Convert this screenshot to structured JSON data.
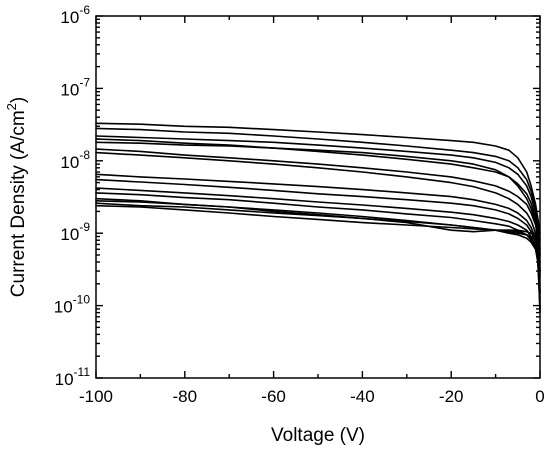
{
  "chart_data": {
    "type": "line",
    "xlabel": "Voltage (V)",
    "ylabel": "Current Density (A/cm²)",
    "ylabel_parts": {
      "main": "Current Density (A/cm",
      "sup": "2",
      "tail": ")"
    },
    "xlim": [
      -100,
      0
    ],
    "ylim": [
      1e-11,
      1e-06
    ],
    "yscale": "log",
    "grid": false,
    "legend": "none",
    "line_color": "#000000",
    "x_ticks": [
      -100,
      -80,
      -60,
      -40,
      -20,
      0
    ],
    "x_tick_labels": [
      "-100",
      "-80",
      "-60",
      "-40",
      "-20",
      "0"
    ],
    "y_ticks": [
      {
        "value": 1e-06,
        "base": "10",
        "exp": "-6"
      },
      {
        "value": 1e-07,
        "base": "10",
        "exp": "-7"
      },
      {
        "value": 1e-08,
        "base": "10",
        "exp": "-8"
      },
      {
        "value": 1e-09,
        "base": "10",
        "exp": "-9"
      },
      {
        "value": 1e-10,
        "base": "10",
        "exp": "-10"
      },
      {
        "value": 1e-11,
        "base": "10",
        "exp": "-11"
      }
    ],
    "x": [
      -100,
      -90,
      -80,
      -70,
      -60,
      -50,
      -40,
      -30,
      -20,
      -15,
      -10,
      -7,
      -5,
      -3,
      -2,
      -1,
      -0.5,
      0
    ],
    "series": [
      {
        "values": [
          3.3e-08,
          3.2e-08,
          3e-08,
          2.9e-08,
          2.7e-08,
          2.5e-08,
          2.3e-08,
          2.1e-08,
          1.9e-08,
          1.8e-08,
          1.6e-08,
          1.4e-08,
          1.1e-08,
          7e-09,
          4.5e-09,
          2.5e-09,
          1.6e-09,
          1e-09
        ]
      },
      {
        "values": [
          2.8e-08,
          2.7e-08,
          2.5e-08,
          2.4e-08,
          2.2e-08,
          2e-08,
          1.8e-08,
          1.6e-08,
          1.4e-08,
          1.3e-08,
          1.15e-08,
          1e-08,
          8e-09,
          5.5e-09,
          3.8e-09,
          2.2e-09,
          1.5e-09,
          8e-10
        ]
      },
      {
        "values": [
          2.2e-08,
          2.1e-08,
          2e-08,
          1.9e-08,
          1.8e-08,
          1.65e-08,
          1.5e-08,
          1.35e-08,
          1.2e-08,
          1.1e-08,
          9.5e-09,
          8e-09,
          6.5e-09,
          4.5e-09,
          3.2e-09,
          1.9e-09,
          1.3e-09,
          6e-10
        ]
      },
      {
        "values": [
          2e-08,
          1.9e-08,
          1.75e-08,
          1.65e-08,
          1.5e-08,
          1.35e-08,
          1.2e-08,
          1.05e-08,
          9e-09,
          8e-09,
          7e-09,
          6e-09,
          4.8e-09,
          3.5e-09,
          2.6e-09,
          1.6e-09,
          1.1e-09,
          5e-10
        ]
      },
      {
        "values": [
          1.8e-08,
          1.75e-08,
          1.65e-08,
          1.6e-08,
          1.5e-08,
          1.4e-08,
          1.3e-08,
          1.15e-08,
          1e-08,
          9e-09,
          7.5e-09,
          6e-09,
          4.5e-09,
          3e-09,
          2.2e-09,
          1.4e-09,
          9e-10,
          3e-10
        ]
      },
      {
        "values": [
          1.45e-08,
          1.35e-08,
          1.2e-08,
          1.1e-08,
          1e-08,
          9e-09,
          8e-09,
          7e-09,
          6e-09,
          5.3e-09,
          4.5e-09,
          3.8e-09,
          3.2e-09,
          2.5e-09,
          1.9e-09,
          1.3e-09,
          8.5e-10,
          2.5e-10
        ]
      },
      {
        "values": [
          1.3e-08,
          1.2e-08,
          1.1e-08,
          1e-08,
          9e-09,
          8e-09,
          7e-09,
          6e-09,
          5e-09,
          4.4e-09,
          3.6e-09,
          3e-09,
          2.5e-09,
          1.9e-09,
          1.5e-09,
          1e-09,
          7e-10,
          1.5e-10
        ]
      },
      {
        "values": [
          6.5e-09,
          6e-09,
          5.6e-09,
          5.2e-09,
          4.8e-09,
          4.4e-09,
          4e-09,
          3.6e-09,
          3.2e-09,
          2.9e-09,
          2.5e-09,
          2.2e-09,
          1.9e-09,
          1.5e-09,
          1.2e-09,
          8.5e-10,
          5.5e-10,
          1e-10
        ]
      },
      {
        "values": [
          5.5e-09,
          5.1e-09,
          4.7e-09,
          4.3e-09,
          3.9e-09,
          3.5e-09,
          3.2e-09,
          2.9e-09,
          2.6e-09,
          2.4e-09,
          2.1e-09,
          1.85e-09,
          1.6e-09,
          1.3e-09,
          1.05e-09,
          7.5e-10,
          5e-10,
          8e-11
        ]
      },
      {
        "values": [
          4.2e-09,
          3.9e-09,
          3.6e-09,
          3.3e-09,
          3e-09,
          2.7e-09,
          2.45e-09,
          2.2e-09,
          1.95e-09,
          1.8e-09,
          1.6e-09,
          1.45e-09,
          1.3e-09,
          1.1e-09,
          9e-10,
          6.5e-10,
          4.5e-10,
          9e-11
        ]
      },
      {
        "values": [
          3.6e-09,
          3.4e-09,
          3.1e-09,
          2.9e-09,
          2.6e-09,
          2.3e-09,
          2.1e-09,
          1.85e-09,
          1.65e-09,
          1.5e-09,
          1.35e-09,
          1.25e-09,
          1.1e-09,
          9.5e-10,
          8e-10,
          6e-10,
          4e-10,
          1.2e-10
        ]
      },
      {
        "values": [
          3e-09,
          2.8e-09,
          2.5e-09,
          2.3e-09,
          2.1e-09,
          1.9e-09,
          1.7e-09,
          1.5e-09,
          1.3e-09,
          1.2e-09,
          1.1e-09,
          1e-09,
          9.5e-10,
          8.5e-10,
          7.5e-10,
          6e-10,
          4.5e-10,
          1.5e-10
        ]
      },
      {
        "values": [
          2.8e-09,
          2.7e-09,
          2.5e-09,
          2.3e-09,
          2e-09,
          1.8e-09,
          1.6e-09,
          1.4e-09,
          1.1e-09,
          1.05e-09,
          1.1e-09,
          1.1e-09,
          1.05e-09,
          9.5e-10,
          8.5e-10,
          7e-10,
          5.5e-10,
          3e-10
        ]
      },
      {
        "values": [
          2.6e-09,
          2.4e-09,
          2.3e-09,
          2.1e-09,
          1.9e-09,
          1.75e-09,
          1.6e-09,
          1.45e-09,
          1.3e-09,
          1.2e-09,
          1.1e-09,
          1.05e-09,
          1e-09,
          9.5e-10,
          9e-10,
          8e-10,
          6.5e-10,
          4e-10
        ]
      },
      {
        "values": [
          2.4e-09,
          2.3e-09,
          2.1e-09,
          1.9e-09,
          1.7e-09,
          1.55e-09,
          1.4e-09,
          1.3e-09,
          1.2e-09,
          1.15e-09,
          1.1e-09,
          1.1e-09,
          1.1e-09,
          1.05e-09,
          1e-09,
          9e-10,
          7.5e-10,
          5e-10
        ]
      }
    ]
  }
}
